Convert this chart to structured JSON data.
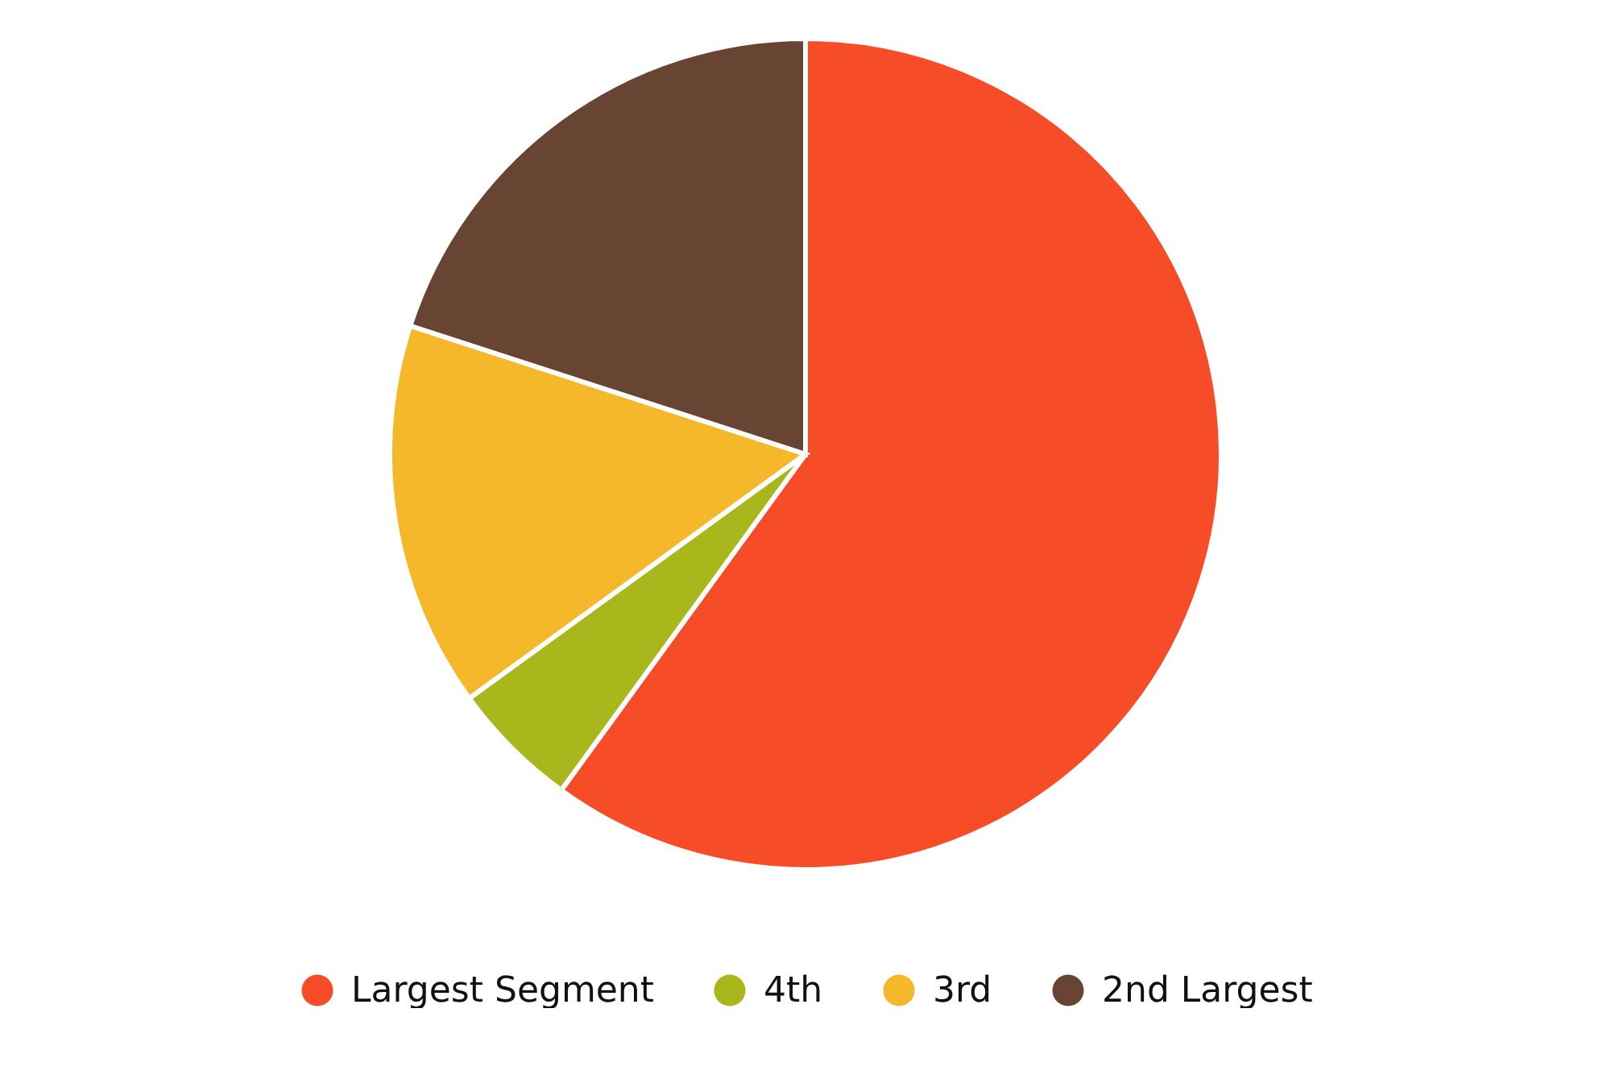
{
  "chart_data": {
    "type": "pie",
    "categories": [
      "Largest Segment",
      "4th",
      "3rd",
      "2nd Largest"
    ],
    "values": [
      60,
      5,
      15,
      20
    ],
    "colors": [
      "#f64c28",
      "#a9b71c",
      "#f5b82a",
      "#684532"
    ],
    "legend": "bottom"
  }
}
